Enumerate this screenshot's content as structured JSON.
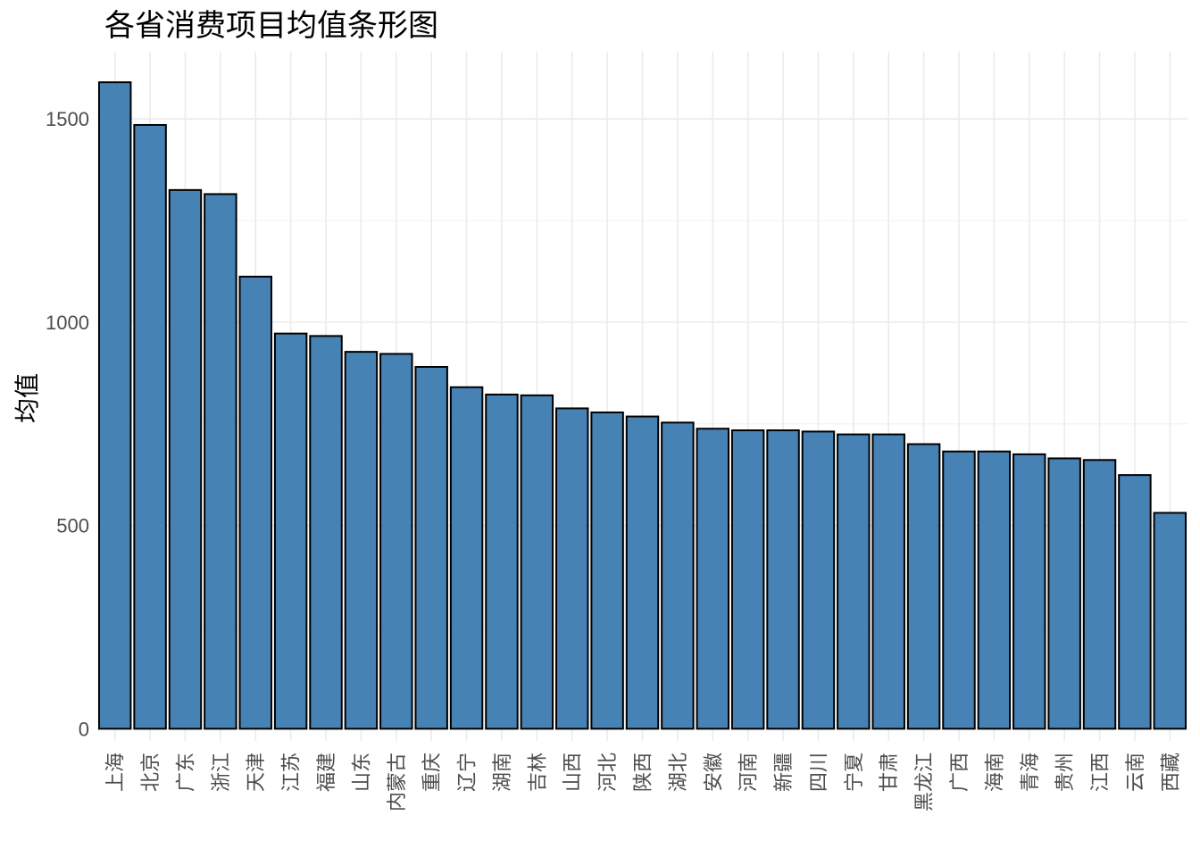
{
  "chart_data": {
    "type": "bar",
    "title": "各省消费项目均值条形图",
    "xlabel": "",
    "ylabel": "均值",
    "categories": [
      "上海",
      "北京",
      "广东",
      "浙江",
      "天津",
      "江苏",
      "福建",
      "山东",
      "内蒙古",
      "重庆",
      "辽宁",
      "湖南",
      "吉林",
      "山西",
      "河北",
      "陕西",
      "湖北",
      "安徽",
      "河南",
      "新疆",
      "四川",
      "宁夏",
      "甘肃",
      "黑龙江",
      "广西",
      "海南",
      "青海",
      "贵州",
      "江西",
      "云南",
      "西藏"
    ],
    "values": [
      1590,
      1485,
      1325,
      1315,
      1112,
      972,
      966,
      927,
      922,
      890,
      840,
      822,
      820,
      788,
      778,
      768,
      753,
      738,
      734,
      734,
      731,
      724,
      724,
      700,
      682,
      682,
      675,
      665,
      661,
      624,
      531
    ],
    "ylim": [
      -30,
      1665
    ],
    "yticks": [
      0,
      500,
      1000,
      1500
    ],
    "grid": true,
    "legend": "none",
    "bar_color": "#4682B4",
    "bar_edge_color": "#000000"
  }
}
